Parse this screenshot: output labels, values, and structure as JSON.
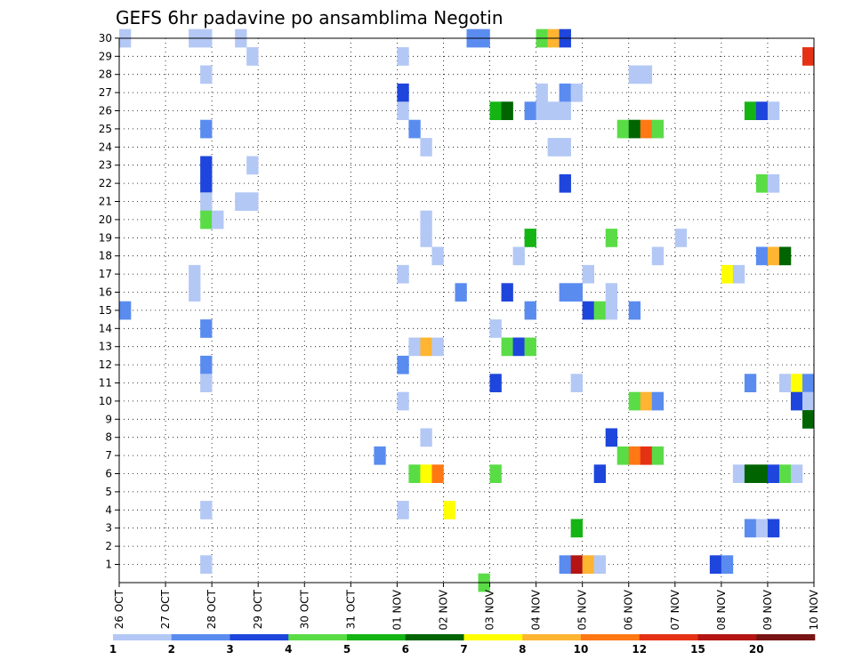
{
  "chart_data": {
    "type": "heatmap",
    "title": "GEFS 6hr padavine po ansamblima Negotin",
    "xlabel": "",
    "ylabel": "",
    "x_tick_labels": [
      "26 OCT",
      "27 OCT",
      "28 OCT",
      "29 OCT",
      "30 OCT",
      "31 OCT",
      "01 NOV",
      "02 NOV",
      "03 NOV",
      "04 NOV",
      "05 NOV",
      "06 NOV",
      "07 NOV",
      "08 NOV",
      "09 NOV",
      "10 NOV"
    ],
    "y_tick_labels": [
      "1",
      "2",
      "3",
      "4",
      "5",
      "6",
      "7",
      "8",
      "9",
      "10",
      "11",
      "12",
      "13",
      "14",
      "15",
      "16",
      "17",
      "18",
      "19",
      "20",
      "21",
      "22",
      "23",
      "24",
      "25",
      "26",
      "27",
      "28",
      "29",
      "30"
    ],
    "x_range_steps": [
      0,
      60
    ],
    "y_range": [
      0.5,
      30
    ],
    "steps_per_day": 4,
    "grid": true,
    "legend_position": "bottom",
    "legend": {
      "boundaries": [
        "1",
        "2",
        "3",
        "4",
        "5",
        "6",
        "7",
        "8",
        "10",
        "12",
        "15",
        "20"
      ],
      "colors": [
        "#b4c8f5",
        "#5a8cf0",
        "#1e46dc",
        "#5adc46",
        "#14b414",
        "#006400",
        "#ffff00",
        "#ffb432",
        "#ff7814",
        "#e63214",
        "#b41414",
        "#781414"
      ]
    },
    "cells": [
      {
        "s": 0.5,
        "m": 30,
        "v": 1.5
      },
      {
        "s": 6.5,
        "m": 30,
        "v": 1.5
      },
      {
        "s": 7.5,
        "m": 30,
        "v": 1.5
      },
      {
        "s": 10.5,
        "m": 30,
        "v": 1.5
      },
      {
        "s": 30.5,
        "m": 30,
        "v": 2.5
      },
      {
        "s": 31.5,
        "m": 30,
        "v": 2.5
      },
      {
        "s": 36.5,
        "m": 30,
        "v": 4.5
      },
      {
        "s": 37.5,
        "m": 30,
        "v": 9
      },
      {
        "s": 38.5,
        "m": 30,
        "v": 3.5
      },
      {
        "s": 11.5,
        "m": 29,
        "v": 1.5
      },
      {
        "s": 24.5,
        "m": 29,
        "v": 1.5
      },
      {
        "s": 59.5,
        "m": 29,
        "v": 13
      },
      {
        "s": 7.5,
        "m": 28,
        "v": 1.5
      },
      {
        "s": 44.5,
        "m": 28,
        "v": 1.5
      },
      {
        "s": 45.5,
        "m": 28,
        "v": 1.5
      },
      {
        "s": 24.5,
        "m": 27,
        "v": 3.5
      },
      {
        "s": 36.5,
        "m": 27,
        "v": 1.5
      },
      {
        "s": 38.5,
        "m": 27,
        "v": 2.5
      },
      {
        "s": 39.5,
        "m": 27,
        "v": 1.5
      },
      {
        "s": 24.5,
        "m": 26,
        "v": 1.5
      },
      {
        "s": 32.5,
        "m": 26,
        "v": 5.5
      },
      {
        "s": 33.5,
        "m": 26,
        "v": 6.5
      },
      {
        "s": 35.5,
        "m": 26,
        "v": 2.5
      },
      {
        "s": 36.5,
        "m": 26,
        "v": 1.5
      },
      {
        "s": 37.5,
        "m": 26,
        "v": 1.5
      },
      {
        "s": 38.5,
        "m": 26,
        "v": 1.5
      },
      {
        "s": 54.5,
        "m": 26,
        "v": 5.5
      },
      {
        "s": 55.5,
        "m": 26,
        "v": 3.5
      },
      {
        "s": 56.5,
        "m": 26,
        "v": 1.5
      },
      {
        "s": 7.5,
        "m": 25,
        "v": 2.5
      },
      {
        "s": 25.5,
        "m": 25,
        "v": 2.5
      },
      {
        "s": 43.5,
        "m": 25,
        "v": 4.5
      },
      {
        "s": 44.5,
        "m": 25,
        "v": 6.5
      },
      {
        "s": 45.5,
        "m": 25,
        "v": 11
      },
      {
        "s": 46.5,
        "m": 25,
        "v": 4.5
      },
      {
        "s": 26.5,
        "m": 24,
        "v": 1.5
      },
      {
        "s": 37.5,
        "m": 24,
        "v": 1.5
      },
      {
        "s": 38.5,
        "m": 24,
        "v": 1.5
      },
      {
        "s": 7.5,
        "m": 23,
        "v": 3.5
      },
      {
        "s": 11.5,
        "m": 23,
        "v": 1.5
      },
      {
        "s": 7.5,
        "m": 22,
        "v": 3.5
      },
      {
        "s": 38.5,
        "m": 22,
        "v": 3.5
      },
      {
        "s": 55.5,
        "m": 22,
        "v": 4.5
      },
      {
        "s": 56.5,
        "m": 22,
        "v": 1.5
      },
      {
        "s": 7.5,
        "m": 21,
        "v": 1.5
      },
      {
        "s": 10.5,
        "m": 21,
        "v": 1.5
      },
      {
        "s": 11.5,
        "m": 21,
        "v": 1.5
      },
      {
        "s": 7.5,
        "m": 20,
        "v": 4.5
      },
      {
        "s": 8.5,
        "m": 20,
        "v": 1.5
      },
      {
        "s": 26.5,
        "m": 20,
        "v": 1.5
      },
      {
        "s": 26.5,
        "m": 19,
        "v": 1.5
      },
      {
        "s": 35.5,
        "m": 19,
        "v": 5.5
      },
      {
        "s": 42.5,
        "m": 19,
        "v": 4.5
      },
      {
        "s": 48.5,
        "m": 19,
        "v": 1.5
      },
      {
        "s": 27.5,
        "m": 18,
        "v": 1.5
      },
      {
        "s": 34.5,
        "m": 18,
        "v": 1.5
      },
      {
        "s": 46.5,
        "m": 18,
        "v": 1.5
      },
      {
        "s": 55.5,
        "m": 18,
        "v": 2.5
      },
      {
        "s": 56.5,
        "m": 18,
        "v": 9
      },
      {
        "s": 57.5,
        "m": 18,
        "v": 6.5
      },
      {
        "s": 6.5,
        "m": 17,
        "v": 1.5
      },
      {
        "s": 24.5,
        "m": 17,
        "v": 1.5
      },
      {
        "s": 40.5,
        "m": 17,
        "v": 1.5
      },
      {
        "s": 52.5,
        "m": 17,
        "v": 7.5
      },
      {
        "s": 53.5,
        "m": 17,
        "v": 1.5
      },
      {
        "s": 6.5,
        "m": 16,
        "v": 1.5
      },
      {
        "s": 29.5,
        "m": 16,
        "v": 2.5
      },
      {
        "s": 33.5,
        "m": 16,
        "v": 3.5
      },
      {
        "s": 38.5,
        "m": 16,
        "v": 2.5
      },
      {
        "s": 39.5,
        "m": 16,
        "v": 2.5
      },
      {
        "s": 42.5,
        "m": 16,
        "v": 1.5
      },
      {
        "s": 0.5,
        "m": 15,
        "v": 2.5
      },
      {
        "s": 35.5,
        "m": 15,
        "v": 2.5
      },
      {
        "s": 40.5,
        "m": 15,
        "v": 3.5
      },
      {
        "s": 41.5,
        "m": 15,
        "v": 4.5
      },
      {
        "s": 42.5,
        "m": 15,
        "v": 1.5
      },
      {
        "s": 44.5,
        "m": 15,
        "v": 2.5
      },
      {
        "s": 7.5,
        "m": 14,
        "v": 2.5
      },
      {
        "s": 32.5,
        "m": 14,
        "v": 1.5
      },
      {
        "s": 25.5,
        "m": 13,
        "v": 1.5
      },
      {
        "s": 26.5,
        "m": 13,
        "v": 9
      },
      {
        "s": 27.5,
        "m": 13,
        "v": 1.5
      },
      {
        "s": 33.5,
        "m": 13,
        "v": 4.5
      },
      {
        "s": 34.5,
        "m": 13,
        "v": 3.5
      },
      {
        "s": 35.5,
        "m": 13,
        "v": 4.5
      },
      {
        "s": 7.5,
        "m": 12,
        "v": 2.5
      },
      {
        "s": 24.5,
        "m": 12,
        "v": 2.5
      },
      {
        "s": 7.5,
        "m": 11,
        "v": 1.5
      },
      {
        "s": 32.5,
        "m": 11,
        "v": 3.5
      },
      {
        "s": 39.5,
        "m": 11,
        "v": 1.5
      },
      {
        "s": 54.5,
        "m": 11,
        "v": 2.5
      },
      {
        "s": 57.5,
        "m": 11,
        "v": 1.5
      },
      {
        "s": 58.5,
        "m": 11,
        "v": 7.5
      },
      {
        "s": 59.5,
        "m": 11,
        "v": 2.5
      },
      {
        "s": 24.5,
        "m": 10,
        "v": 1.5
      },
      {
        "s": 44.5,
        "m": 10,
        "v": 4.5
      },
      {
        "s": 45.5,
        "m": 10,
        "v": 9
      },
      {
        "s": 46.5,
        "m": 10,
        "v": 2.5
      },
      {
        "s": 58.5,
        "m": 10,
        "v": 3.5
      },
      {
        "s": 59.5,
        "m": 10,
        "v": 1.5
      },
      {
        "s": 59.5,
        "m": 9,
        "v": 6.5
      },
      {
        "s": 26.5,
        "m": 8,
        "v": 1.5
      },
      {
        "s": 42.5,
        "m": 8,
        "v": 3.5
      },
      {
        "s": 22.5,
        "m": 7,
        "v": 2.5
      },
      {
        "s": 43.5,
        "m": 7,
        "v": 4.5
      },
      {
        "s": 44.5,
        "m": 7,
        "v": 11
      },
      {
        "s": 45.5,
        "m": 7,
        "v": 13
      },
      {
        "s": 46.5,
        "m": 7,
        "v": 4.5
      },
      {
        "s": 25.5,
        "m": 6,
        "v": 4.5
      },
      {
        "s": 26.5,
        "m": 6,
        "v": 7.5
      },
      {
        "s": 27.5,
        "m": 6,
        "v": 11
      },
      {
        "s": 32.5,
        "m": 6,
        "v": 4.5
      },
      {
        "s": 41.5,
        "m": 6,
        "v": 3.5
      },
      {
        "s": 53.5,
        "m": 6,
        "v": 1.5
      },
      {
        "s": 54.5,
        "m": 6,
        "v": 6.5
      },
      {
        "s": 55.5,
        "m": 6,
        "v": 6.5
      },
      {
        "s": 56.5,
        "m": 6,
        "v": 3.5
      },
      {
        "s": 57.5,
        "m": 6,
        "v": 4.5
      },
      {
        "s": 58.5,
        "m": 6,
        "v": 1.5
      },
      {
        "s": 7.5,
        "m": 4,
        "v": 1.5
      },
      {
        "s": 24.5,
        "m": 4,
        "v": 1.5
      },
      {
        "s": 28.5,
        "m": 4,
        "v": 7.5
      },
      {
        "s": 39.5,
        "m": 3,
        "v": 5.5
      },
      {
        "s": 54.5,
        "m": 3,
        "v": 2.5
      },
      {
        "s": 55.5,
        "m": 3,
        "v": 1.5
      },
      {
        "s": 56.5,
        "m": 3,
        "v": 3.5
      },
      {
        "s": 7.5,
        "m": 1,
        "v": 1.5
      },
      {
        "s": 38.5,
        "m": 1,
        "v": 2.5
      },
      {
        "s": 39.5,
        "m": 1,
        "v": 17
      },
      {
        "s": 40.5,
        "m": 1,
        "v": 9
      },
      {
        "s": 41.5,
        "m": 1,
        "v": 1.5
      },
      {
        "s": 51.5,
        "m": 1,
        "v": 3.5
      },
      {
        "s": 52.5,
        "m": 1,
        "v": 2.5
      },
      {
        "s": 31.5,
        "m": 0,
        "v": 4.5
      }
    ]
  }
}
